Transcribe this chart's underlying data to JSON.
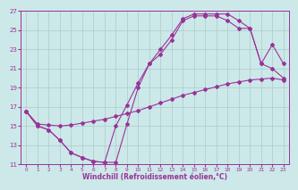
{
  "xlabel": "Windchill (Refroidissement éolien,°C)",
  "bg_color": "#cce8e8",
  "grid_color": "#aacccc",
  "line_color": "#993399",
  "xlim": [
    -0.5,
    23.5
  ],
  "ylim": [
    11,
    27
  ],
  "xticks": [
    0,
    1,
    2,
    3,
    4,
    5,
    6,
    7,
    8,
    9,
    10,
    11,
    12,
    13,
    14,
    15,
    16,
    17,
    18,
    19,
    20,
    21,
    22,
    23
  ],
  "yticks": [
    11,
    13,
    15,
    17,
    19,
    21,
    23,
    25,
    27
  ],
  "curve1_x": [
    0,
    1,
    2,
    3,
    4,
    5,
    6,
    7,
    8,
    9,
    10,
    11,
    12,
    13,
    14,
    15,
    16,
    17,
    18,
    19,
    20,
    21,
    22,
    23
  ],
  "curve1_y": [
    16.5,
    15.0,
    14.6,
    13.5,
    12.2,
    11.7,
    11.3,
    11.2,
    11.2,
    15.2,
    19.0,
    21.5,
    23.0,
    24.5,
    26.2,
    26.7,
    26.7,
    26.7,
    26.7,
    26.0,
    25.2,
    21.5,
    21.0,
    20.0
  ],
  "curve2_x": [
    0,
    1,
    2,
    3,
    4,
    5,
    6,
    7,
    8,
    9,
    10,
    11,
    12,
    13,
    14,
    15,
    16,
    17,
    18,
    19,
    20,
    21,
    22,
    23
  ],
  "curve2_y": [
    16.5,
    15.0,
    14.6,
    13.5,
    12.2,
    11.7,
    11.3,
    11.2,
    15.0,
    17.2,
    19.5,
    21.5,
    22.5,
    24.0,
    26.0,
    26.5,
    26.5,
    26.5,
    26.0,
    25.2,
    25.2,
    21.5,
    23.5,
    21.5
  ],
  "curve3_x": [
    0,
    1,
    2,
    3,
    4,
    5,
    6,
    7,
    8,
    9,
    10,
    11,
    12,
    13,
    14,
    15,
    16,
    17,
    18,
    19,
    20,
    21,
    22,
    23
  ],
  "curve3_y": [
    16.5,
    15.2,
    15.1,
    15.0,
    15.1,
    15.3,
    15.5,
    15.7,
    16.0,
    16.3,
    16.6,
    17.0,
    17.4,
    17.8,
    18.2,
    18.5,
    18.8,
    19.1,
    19.4,
    19.6,
    19.8,
    19.9,
    20.0,
    19.8
  ]
}
